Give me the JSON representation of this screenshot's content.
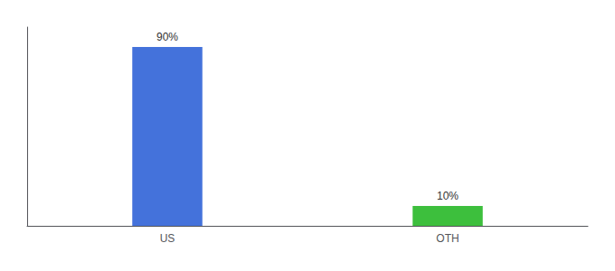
{
  "chart_data": {
    "type": "bar",
    "categories": [
      "US",
      "OTH"
    ],
    "values": [
      90,
      10
    ],
    "value_labels": [
      "90%",
      "10%"
    ],
    "data_labels": true,
    "colors": [
      "#4472db",
      "#3dbf3d"
    ],
    "ylim": [
      0,
      100
    ],
    "tick_labels": "x",
    "grid": false
  }
}
